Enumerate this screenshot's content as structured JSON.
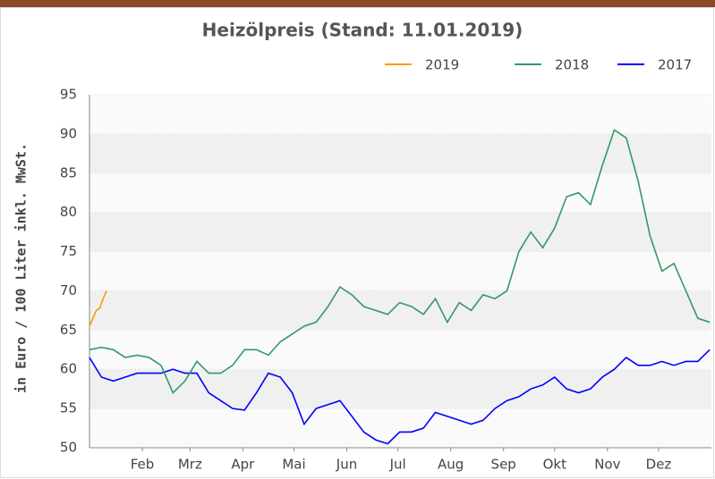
{
  "chart_data": {
    "type": "line",
    "title": "Heizölpreis (Stand: 11.01.2019)",
    "y_label": "in Euro / 100 Liter inkl. MwSt.",
    "xlim": [
      0,
      365
    ],
    "xticks": [
      {
        "value": 31,
        "label": "Feb"
      },
      {
        "value": 59,
        "label": "Mrz"
      },
      {
        "value": 90,
        "label": "Apr"
      },
      {
        "value": 120,
        "label": "Mai"
      },
      {
        "value": 151,
        "label": "Jun"
      },
      {
        "value": 181,
        "label": "Jul"
      },
      {
        "value": 212,
        "label": "Aug"
      },
      {
        "value": 243,
        "label": "Sep"
      },
      {
        "value": 273,
        "label": "Okt"
      },
      {
        "value": 304,
        "label": "Nov"
      },
      {
        "value": 334,
        "label": "Dez"
      }
    ],
    "ylim": [
      50,
      95
    ],
    "yticks": [
      50,
      55,
      60,
      65,
      70,
      75,
      80,
      85,
      90,
      95
    ],
    "grid": true,
    "legend": "top-right",
    "series": [
      {
        "name": "2019",
        "color": "#ff9900",
        "x": [
          0,
          2,
          4,
          6,
          8,
          10
        ],
        "values": [
          65.5,
          66.5,
          67.5,
          67.8,
          69,
          70
        ]
      },
      {
        "name": "2018",
        "color": "#339966",
        "x": [
          0,
          7,
          14,
          21,
          28,
          35,
          42,
          49,
          56,
          63,
          70,
          77,
          84,
          91,
          98,
          105,
          112,
          119,
          126,
          133,
          140,
          147,
          154,
          161,
          168,
          175,
          182,
          189,
          196,
          203,
          210,
          217,
          224,
          231,
          238,
          245,
          252,
          259,
          266,
          273,
          280,
          287,
          294,
          301,
          308,
          315,
          322,
          329,
          336,
          343,
          350,
          357,
          364
        ],
        "values": [
          62.5,
          62.8,
          62.5,
          61.5,
          61.8,
          61.5,
          60.5,
          57,
          58.5,
          61,
          59.5,
          59.5,
          60.5,
          62.5,
          62.5,
          61.8,
          63.5,
          64.5,
          65.5,
          66,
          68,
          70.5,
          69.5,
          68,
          67.5,
          67,
          68.5,
          68,
          67,
          69,
          66,
          68.5,
          67.5,
          69.5,
          69,
          70,
          75,
          77.5,
          75.5,
          78,
          82,
          82.5,
          81,
          86,
          90.5,
          89.5,
          84,
          77,
          72.5,
          73.5,
          70,
          66.5,
          66
        ]
      },
      {
        "name": "2017",
        "color": "#0000ff",
        "x": [
          0,
          7,
          14,
          21,
          28,
          35,
          42,
          49,
          56,
          63,
          70,
          77,
          84,
          91,
          98,
          105,
          112,
          119,
          126,
          133,
          140,
          147,
          154,
          161,
          168,
          175,
          182,
          189,
          196,
          203,
          210,
          217,
          224,
          231,
          238,
          245,
          252,
          259,
          266,
          273,
          280,
          287,
          294,
          301,
          308,
          315,
          322,
          329,
          336,
          343,
          350,
          357,
          364
        ],
        "values": [
          61.5,
          59,
          58.5,
          59,
          59.5,
          59.5,
          59.5,
          60,
          59.5,
          59.5,
          57,
          56,
          55,
          54.8,
          57,
          59.5,
          59,
          57,
          53,
          55,
          55.5,
          56,
          54,
          52,
          51,
          50.5,
          52,
          52,
          52.5,
          54.5,
          54,
          53.5,
          53,
          53.5,
          55,
          56,
          56.5,
          57.5,
          58,
          59,
          57.5,
          57,
          57.5,
          59,
          60,
          61.5,
          60.5,
          60.5,
          61,
          60.5,
          61,
          61,
          62.5
        ]
      }
    ]
  }
}
